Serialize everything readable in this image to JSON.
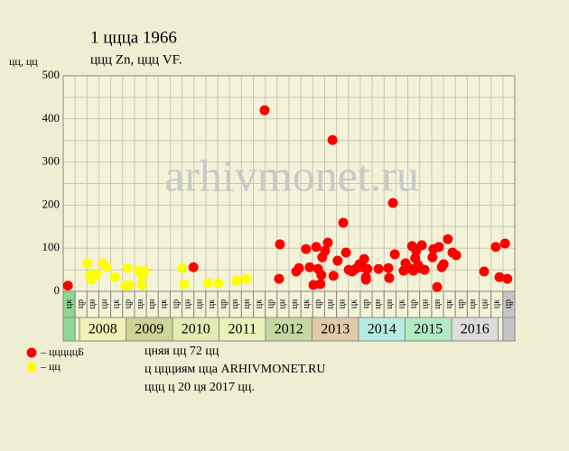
{
  "chart_data": {
    "type": "scatter",
    "title": "1 ццца 1966",
    "subtitle": "ццц Zn, ццц VF.",
    "y_label": "цц, цц",
    "watermark": "arhivmonet.ru",
    "xlim": [
      2007.65,
      2017.36
    ],
    "ylim": [
      0,
      500
    ],
    "yticks": [
      0,
      100,
      200,
      300,
      400,
      500
    ],
    "grid_step_ticks": [
      50,
      150,
      250,
      350,
      450
    ],
    "xticks": [
      {
        "value": 2008,
        "label": "2008"
      },
      {
        "value": 2009,
        "label": "2009"
      },
      {
        "value": 2010,
        "label": "2010"
      },
      {
        "value": 2011,
        "label": "2011"
      },
      {
        "value": 2012,
        "label": "2012"
      },
      {
        "value": 2013,
        "label": "2013"
      },
      {
        "value": 2014,
        "label": "2014"
      },
      {
        "value": 2015,
        "label": "2015"
      },
      {
        "value": 2016,
        "label": "2016"
      }
    ],
    "year_colors": [
      "#f2f2b8",
      "#cdd494",
      "#e2ecb4",
      "#e8f2ba",
      "#c6d8a2",
      "#e2caa8",
      "#b8ece2",
      "#b2eac4",
      "#dcdcdc"
    ],
    "quarter_labels": [
      "цк",
      "цр",
      "цн",
      "цн",
      "цк",
      "цр",
      "цн",
      "цн",
      "цк",
      "цр",
      "цн",
      "цн",
      "цк",
      "цр",
      "цн",
      "цн",
      "цк",
      "цр",
      "цн",
      "цн",
      "цк",
      "цр",
      "цн",
      "цн",
      "цк",
      "цр",
      "цн",
      "цн",
      "цк",
      "цр",
      "цн",
      "цн",
      "цк",
      "цр",
      "цн",
      "цн",
      "цк",
      "цр"
    ],
    "edge_colors": [
      "#8cd890",
      "#c4c4c4"
    ],
    "series": [
      {
        "name": "– цццццБ",
        "color": "#ff0000",
        "x": [
          2007.75,
          2010.45,
          2011.98,
          2012.31,
          2012.29,
          2012.66,
          2012.72,
          2012.87,
          2012.95,
          2013.03,
          2013.09,
          2013.13,
          2013.18,
          2013.2,
          2013.22,
          2013.28,
          2013.34,
          2013.44,
          2013.46,
          2013.55,
          2013.67,
          2013.73,
          2013.79,
          2013.86,
          2013.94,
          2014.02,
          2014.08,
          2014.12,
          2014.16,
          2014.16,
          2014.19,
          2014.43,
          2014.64,
          2014.66,
          2014.74,
          2014.78,
          2014.97,
          2015.01,
          2015.09,
          2015.15,
          2015.18,
          2015.22,
          2015.24,
          2015.28,
          2015.32,
          2015.36,
          2015.42,
          2015.59,
          2015.61,
          2015.69,
          2015.73,
          2015.79,
          2015.83,
          2015.92,
          2016.02,
          2016.1,
          2016.7,
          2016.95,
          2017.03,
          2017.15,
          2017.2
        ],
        "values": [
          13,
          56,
          420,
          109,
          29,
          46,
          54,
          98,
          56,
          15,
          103,
          52,
          17,
          38,
          79,
          94,
          113,
          351,
          36,
          71,
          159,
          90,
          50,
          46,
          52,
          63,
          56,
          75,
          33,
          27,
          52,
          52,
          54,
          31,
          205,
          86,
          48,
          65,
          54,
          105,
          48,
          77,
          94,
          61,
          54,
          107,
          50,
          79,
          98,
          10,
          103,
          56,
          63,
          121,
          90,
          84,
          46,
          103,
          33,
          111,
          29
        ]
      },
      {
        "name": "– цц",
        "color": "#ffff00",
        "x": [
          2008.17,
          2008.25,
          2008.23,
          2008.37,
          2008.5,
          2008.58,
          2008.76,
          2008.99,
          2009.03,
          2009.07,
          2009.28,
          2009.34,
          2009.34,
          2009.4,
          2010.21,
          2010.25,
          2010.76,
          2010.99,
          2011.38,
          2011.59
        ],
        "values": [
          65,
          27,
          38,
          40,
          65,
          56,
          33,
          13,
          54,
          15,
          48,
          15,
          36,
          46,
          54,
          17,
          19,
          19,
          25,
          29
        ]
      }
    ],
    "notes": [
      "цняя цц 72 цц",
      "ц ццциям цца ARHIVMONET.RU",
      "ццц ц 20 ця 2017 цц."
    ]
  }
}
